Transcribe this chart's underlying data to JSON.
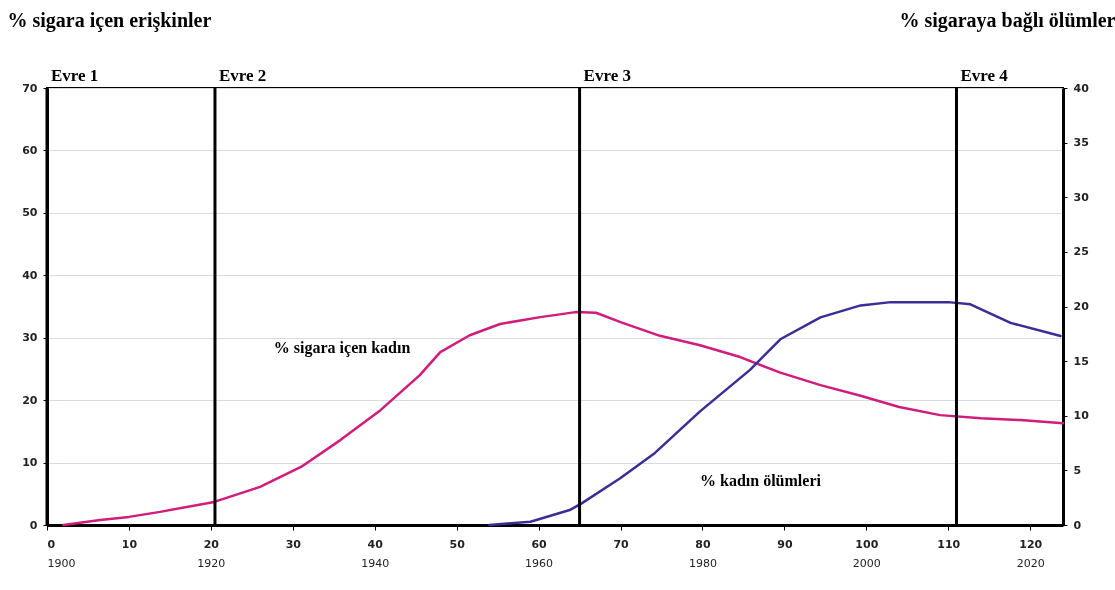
{
  "chart_data": {
    "type": "line",
    "ylabel": "% sigara içen erişkinler",
    "y2label": "% sigaraya bağlı ölümler",
    "xlim": [
      0,
      124
    ],
    "xticks": [
      0,
      10,
      20,
      30,
      40,
      50,
      60,
      70,
      80,
      90,
      100,
      110,
      120
    ],
    "x2lim": [
      1900,
      2024
    ],
    "x2ticks": [
      1900,
      1920,
      1940,
      1960,
      1980,
      2000,
      2020
    ],
    "ylim": [
      0,
      70
    ],
    "yticks": [
      0,
      10,
      20,
      30,
      40,
      50,
      60,
      70
    ],
    "y2lim": [
      0,
      40
    ],
    "y2ticks": [
      0,
      5,
      10,
      15,
      20,
      25,
      30,
      35,
      40
    ],
    "grid": "y",
    "legend": false,
    "marker": "none",
    "line_style": "solid",
    "ref_lines": [
      {
        "axis": "x",
        "value": 0,
        "label": "Evre 1",
        "color": "#000000"
      },
      {
        "axis": "x",
        "value": 20.5,
        "label": "Evre 2",
        "color": "#000000"
      },
      {
        "axis": "x",
        "value": 65,
        "label": "Evre 3",
        "color": "#000000"
      },
      {
        "axis": "x",
        "value": 111,
        "label": "Evre 4",
        "color": "#000000"
      }
    ],
    "series": [
      {
        "name": "% sigara içen kadın",
        "color": "#d01c7b",
        "x": [
          2,
          6.5,
          10,
          13.8,
          20.4,
          26,
          31,
          35.8,
          40.7,
          45.5,
          48,
          51.6,
          55.3,
          60.2,
          64.5,
          67,
          70,
          74.8,
          79.7,
          84.6,
          89.5,
          94.4,
          99.3,
          104,
          109,
          114,
          118.8,
          124
        ],
        "values": [
          0,
          0.8,
          1.3,
          2.1,
          3.7,
          6.1,
          9.3,
          13.6,
          18.4,
          24,
          27.7,
          30.4,
          32.2,
          33.3,
          34.1,
          34,
          32.5,
          30.3,
          28.8,
          26.9,
          24.4,
          22.4,
          20.7,
          18.9,
          17.6,
          17.1,
          16.8,
          16.3
        ]
      },
      {
        "name": "% kadın ölümleri",
        "color": "#3a2d96",
        "axis": "y2",
        "x": [
          54,
          59,
          63.9,
          65.3,
          70,
          74.2,
          79.7,
          85.8,
          89.5,
          94.4,
          99.3,
          103,
          110,
          112.7,
          117.6,
          123.7
        ],
        "values": [
          0,
          0.3,
          1.4,
          2,
          4.3,
          6.6,
          10.4,
          14.2,
          17,
          19,
          20.1,
          20.4,
          20.4,
          20.2,
          18.5,
          17.3
        ]
      }
    ]
  }
}
